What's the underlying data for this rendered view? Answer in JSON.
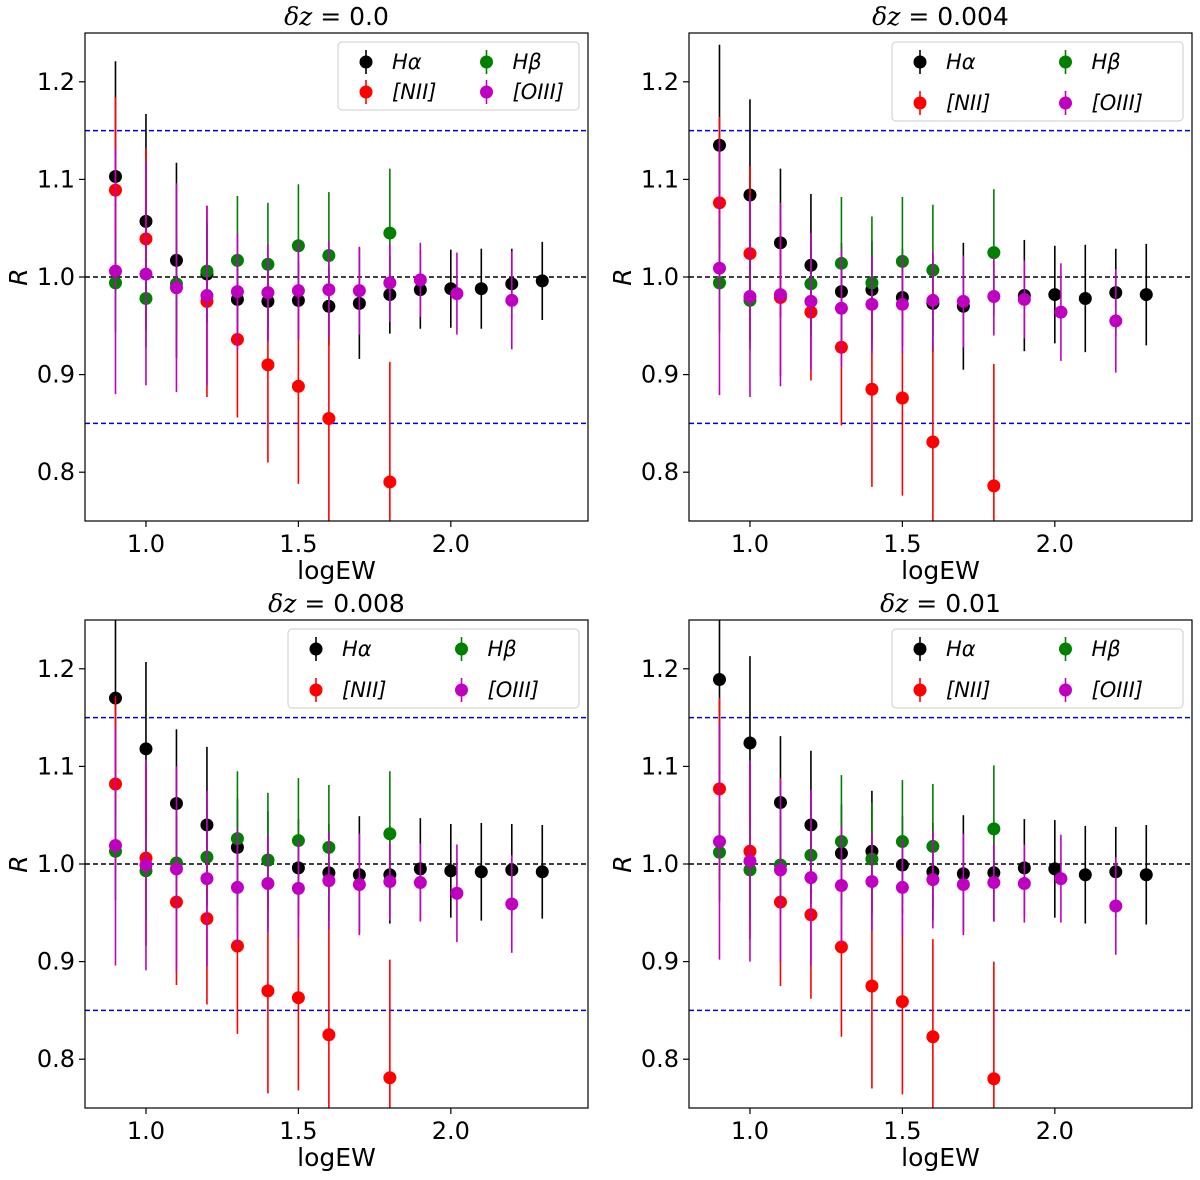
{
  "figure": {
    "ref_line_color": "#000000",
    "limit_line_color": "#0000cc"
  },
  "chart_data": [
    {
      "type": "scatter",
      "title_prefix": "δz = ",
      "title": "0.0",
      "xlabel": "logEW",
      "ylabel": "R",
      "xlim": [
        0.8,
        2.45
      ],
      "ylim": [
        0.75,
        1.25
      ],
      "xticks": [
        1.0,
        1.5,
        2.0
      ],
      "xtick_labels": [
        "1.0",
        "1.5",
        "2.0"
      ],
      "yticks": [
        0.8,
        0.9,
        1.0,
        1.1,
        1.2
      ],
      "ytick_labels": [
        "0.8",
        "0.9",
        "1.0",
        "1.1",
        "1.2"
      ],
      "hlines": [
        1.0,
        0.85,
        1.15
      ],
      "legend": "top-right",
      "series": [
        {
          "name": "Hα",
          "color": "#000000",
          "x": [
            0.9,
            1.0,
            1.1,
            1.2,
            1.3,
            1.4,
            1.5,
            1.6,
            1.7,
            1.8,
            1.9,
            2.0,
            2.1,
            2.2,
            2.3
          ],
          "y": [
            1.103,
            1.057,
            1.017,
            1.003,
            0.977,
            0.975,
            0.976,
            0.97,
            0.973,
            0.982,
            0.987,
            0.988,
            0.988,
            0.993,
            0.996
          ],
          "err": [
            0.118,
            0.11,
            0.1,
            0.05,
            0.04,
            0.04,
            0.04,
            0.04,
            0.057,
            0.04,
            0.04,
            0.04,
            0.041,
            0.036,
            0.04
          ]
        },
        {
          "name": "[NII]",
          "color": "#ff0000",
          "x": [
            0.9,
            1.0,
            1.2,
            1.3,
            1.4,
            1.5,
            1.6,
            1.8
          ],
          "y": [
            1.089,
            1.039,
            0.975,
            0.936,
            0.91,
            0.888,
            0.855,
            0.79
          ],
          "err": [
            0.095,
            0.093,
            0.098,
            0.08,
            0.1,
            0.1,
            0.105,
            0.123
          ]
        },
        {
          "name": "Hβ",
          "color": "#008000",
          "x": [
            0.9,
            1.0,
            1.1,
            1.2,
            1.3,
            1.4,
            1.5,
            1.6,
            1.8
          ],
          "y": [
            0.994,
            0.978,
            0.993,
            1.006,
            1.017,
            1.013,
            1.032,
            1.022,
            1.045
          ],
          "err": [
            0.05,
            0.05,
            0.05,
            0.05,
            0.066,
            0.063,
            0.063,
            0.065,
            0.066
          ]
        },
        {
          "name": "[OIII]",
          "color": "#c000c0",
          "x": [
            0.9,
            1.0,
            1.1,
            1.2,
            1.3,
            1.4,
            1.5,
            1.6,
            1.7,
            1.8,
            1.9,
            2.02,
            2.2
          ],
          "y": [
            1.006,
            1.003,
            0.989,
            0.981,
            0.985,
            0.984,
            0.986,
            0.987,
            0.986,
            0.994,
            0.997,
            0.983,
            0.976
          ],
          "err": [
            0.126,
            0.114,
            0.107,
            0.092,
            0.06,
            0.05,
            0.05,
            0.05,
            0.045,
            0.04,
            0.038,
            0.042,
            0.05
          ]
        }
      ]
    },
    {
      "type": "scatter",
      "title_prefix": "δz = ",
      "title": "0.004",
      "xlabel": "logEW",
      "ylabel": "R",
      "xlim": [
        0.8,
        2.45
      ],
      "ylim": [
        0.75,
        1.25
      ],
      "xticks": [
        1.0,
        1.5,
        2.0
      ],
      "xtick_labels": [
        "1.0",
        "1.5",
        "2.0"
      ],
      "yticks": [
        0.8,
        0.9,
        1.0,
        1.1,
        1.2
      ],
      "ytick_labels": [
        "0.8",
        "0.9",
        "1.0",
        "1.1",
        "1.2"
      ],
      "hlines": [
        1.0,
        0.85,
        1.15
      ],
      "legend": "top-right",
      "series": [
        {
          "name": "Hα",
          "color": "#000000",
          "x": [
            0.9,
            1.0,
            1.1,
            1.2,
            1.3,
            1.4,
            1.5,
            1.6,
            1.7,
            1.9,
            2.0,
            2.1,
            2.2,
            2.3
          ],
          "y": [
            1.135,
            1.084,
            1.035,
            1.012,
            0.985,
            0.987,
            0.979,
            0.973,
            0.97,
            0.981,
            0.982,
            0.978,
            0.984,
            0.982
          ],
          "err": [
            0.103,
            0.098,
            0.076,
            0.073,
            0.05,
            0.05,
            0.05,
            0.05,
            0.065,
            0.057,
            0.05,
            0.055,
            0.045,
            0.052
          ]
        },
        {
          "name": "[NII]",
          "color": "#ff0000",
          "x": [
            0.9,
            1.0,
            1.1,
            1.2,
            1.3,
            1.4,
            1.5,
            1.6,
            1.8
          ],
          "y": [
            1.076,
            1.024,
            0.979,
            0.964,
            0.928,
            0.885,
            0.876,
            0.831,
            0.786
          ],
          "err": [
            0.088,
            0.09,
            0.08,
            0.07,
            0.08,
            0.1,
            0.1,
            0.1,
            0.125
          ]
        },
        {
          "name": "Hβ",
          "color": "#008000",
          "x": [
            0.9,
            1.0,
            1.2,
            1.3,
            1.4,
            1.5,
            1.6,
            1.8
          ],
          "y": [
            0.994,
            0.976,
            0.993,
            1.014,
            0.994,
            1.016,
            1.007,
            1.025
          ],
          "err": [
            0.05,
            0.05,
            0.05,
            0.068,
            0.068,
            0.066,
            0.067,
            0.065
          ]
        },
        {
          "name": "[OIII]",
          "color": "#c000c0",
          "x": [
            0.9,
            1.0,
            1.1,
            1.2,
            1.3,
            1.4,
            1.5,
            1.6,
            1.7,
            1.8,
            1.9,
            2.02,
            2.2
          ],
          "y": [
            1.009,
            0.98,
            0.982,
            0.975,
            0.968,
            0.972,
            0.972,
            0.976,
            0.975,
            0.98,
            0.977,
            0.964,
            0.955
          ],
          "err": [
            0.13,
            0.103,
            0.094,
            0.07,
            0.06,
            0.05,
            0.05,
            0.05,
            0.047,
            0.04,
            0.04,
            0.05,
            0.053
          ]
        }
      ]
    },
    {
      "type": "scatter",
      "title_prefix": "δz = ",
      "title": "0.008",
      "xlabel": "logEW",
      "ylabel": "R",
      "xlim": [
        0.8,
        2.45
      ],
      "ylim": [
        0.75,
        1.25
      ],
      "xticks": [
        1.0,
        1.5,
        2.0
      ],
      "xtick_labels": [
        "1.0",
        "1.5",
        "2.0"
      ],
      "yticks": [
        0.8,
        0.9,
        1.0,
        1.1,
        1.2
      ],
      "ytick_labels": [
        "0.8",
        "0.9",
        "1.0",
        "1.1",
        "1.2"
      ],
      "hlines": [
        1.0,
        0.85,
        1.15
      ],
      "legend": "top-right",
      "series": [
        {
          "name": "Hα",
          "color": "#000000",
          "x": [
            0.9,
            1.0,
            1.1,
            1.2,
            1.3,
            1.4,
            1.5,
            1.6,
            1.7,
            1.8,
            1.9,
            2.0,
            2.1,
            2.2,
            2.3
          ],
          "y": [
            1.17,
            1.118,
            1.062,
            1.04,
            1.017,
            1.004,
            0.996,
            0.991,
            0.989,
            0.989,
            0.995,
            0.993,
            0.992,
            0.994,
            0.992
          ],
          "err": [
            0.12,
            0.089,
            0.076,
            0.08,
            0.05,
            0.05,
            0.05,
            0.05,
            0.06,
            0.05,
            0.052,
            0.048,
            0.05,
            0.047,
            0.048
          ]
        },
        {
          "name": "[NII]",
          "color": "#ff0000",
          "x": [
            0.9,
            1.0,
            1.1,
            1.2,
            1.3,
            1.4,
            1.5,
            1.6,
            1.8
          ],
          "y": [
            1.082,
            1.006,
            0.961,
            0.944,
            0.916,
            0.87,
            0.863,
            0.825,
            0.781
          ],
          "err": [
            0.09,
            0.09,
            0.085,
            0.088,
            0.09,
            0.105,
            0.095,
            0.115,
            0.121
          ]
        },
        {
          "name": "Hβ",
          "color": "#008000",
          "x": [
            0.9,
            1.0,
            1.1,
            1.2,
            1.3,
            1.4,
            1.5,
            1.6,
            1.8
          ],
          "y": [
            1.013,
            0.993,
            1.001,
            1.007,
            1.026,
            1.004,
            1.024,
            1.017,
            1.031
          ],
          "err": [
            0.05,
            0.05,
            0.05,
            0.05,
            0.069,
            0.069,
            0.064,
            0.064,
            0.064
          ]
        },
        {
          "name": "[OIII]",
          "color": "#c000c0",
          "x": [
            0.9,
            1.0,
            1.1,
            1.2,
            1.3,
            1.4,
            1.5,
            1.6,
            1.7,
            1.8,
            1.9,
            2.02,
            2.2
          ],
          "y": [
            1.019,
            0.999,
            0.995,
            0.985,
            0.976,
            0.98,
            0.975,
            0.983,
            0.979,
            0.982,
            0.981,
            0.97,
            0.959
          ],
          "err": [
            0.123,
            0.108,
            0.105,
            0.09,
            0.06,
            0.05,
            0.05,
            0.05,
            0.052,
            0.04,
            0.04,
            0.05,
            0.05
          ]
        }
      ]
    },
    {
      "type": "scatter",
      "title_prefix": "δz = ",
      "title": "0.01",
      "xlabel": "logEW",
      "ylabel": "R",
      "xlim": [
        0.8,
        2.45
      ],
      "ylim": [
        0.75,
        1.25
      ],
      "xticks": [
        1.0,
        1.5,
        2.0
      ],
      "xtick_labels": [
        "1.0",
        "1.5",
        "2.0"
      ],
      "yticks": [
        0.8,
        0.9,
        1.0,
        1.1,
        1.2
      ],
      "ytick_labels": [
        "0.8",
        "0.9",
        "1.0",
        "1.1",
        "1.2"
      ],
      "hlines": [
        1.0,
        0.85,
        1.15
      ],
      "legend": "top-right",
      "series": [
        {
          "name": "Hα",
          "color": "#000000",
          "x": [
            0.9,
            1.0,
            1.1,
            1.2,
            1.3,
            1.4,
            1.5,
            1.6,
            1.7,
            1.8,
            1.9,
            2.0,
            2.1,
            2.2,
            2.3
          ],
          "y": [
            1.189,
            1.124,
            1.063,
            1.04,
            1.011,
            1.013,
            0.999,
            0.992,
            0.99,
            0.991,
            0.996,
            0.995,
            0.989,
            0.992,
            0.989
          ],
          "err": [
            0.12,
            0.089,
            0.068,
            0.076,
            0.05,
            0.062,
            0.05,
            0.05,
            0.06,
            0.05,
            0.05,
            0.05,
            0.05,
            0.046,
            0.051
          ]
        },
        {
          "name": "[NII]",
          "color": "#ff0000",
          "x": [
            0.9,
            1.0,
            1.1,
            1.2,
            1.3,
            1.4,
            1.5,
            1.6,
            1.8
          ],
          "y": [
            1.077,
            1.013,
            0.961,
            0.948,
            0.915,
            0.875,
            0.859,
            0.823,
            0.78
          ],
          "err": [
            0.093,
            0.09,
            0.086,
            0.086,
            0.092,
            0.105,
            0.095,
            0.1,
            0.12
          ]
        },
        {
          "name": "Hβ",
          "color": "#008000",
          "x": [
            0.9,
            1.0,
            1.1,
            1.2,
            1.3,
            1.4,
            1.5,
            1.6,
            1.8
          ],
          "y": [
            1.012,
            0.994,
            0.999,
            1.009,
            1.023,
            1.005,
            1.023,
            1.018,
            1.036
          ],
          "err": [
            0.05,
            0.05,
            0.05,
            0.05,
            0.068,
            0.058,
            0.063,
            0.064,
            0.065
          ]
        },
        {
          "name": "[OIII]",
          "color": "#c000c0",
          "x": [
            0.9,
            1.0,
            1.1,
            1.2,
            1.3,
            1.4,
            1.5,
            1.6,
            1.7,
            1.8,
            1.9,
            2.02,
            2.2
          ],
          "y": [
            1.023,
            1.003,
            0.994,
            0.986,
            0.978,
            0.982,
            0.976,
            0.984,
            0.979,
            0.981,
            0.98,
            0.985,
            0.957
          ],
          "err": [
            0.121,
            0.103,
            0.094,
            0.09,
            0.06,
            0.05,
            0.05,
            0.05,
            0.052,
            0.04,
            0.04,
            0.045,
            0.05
          ]
        }
      ]
    }
  ]
}
